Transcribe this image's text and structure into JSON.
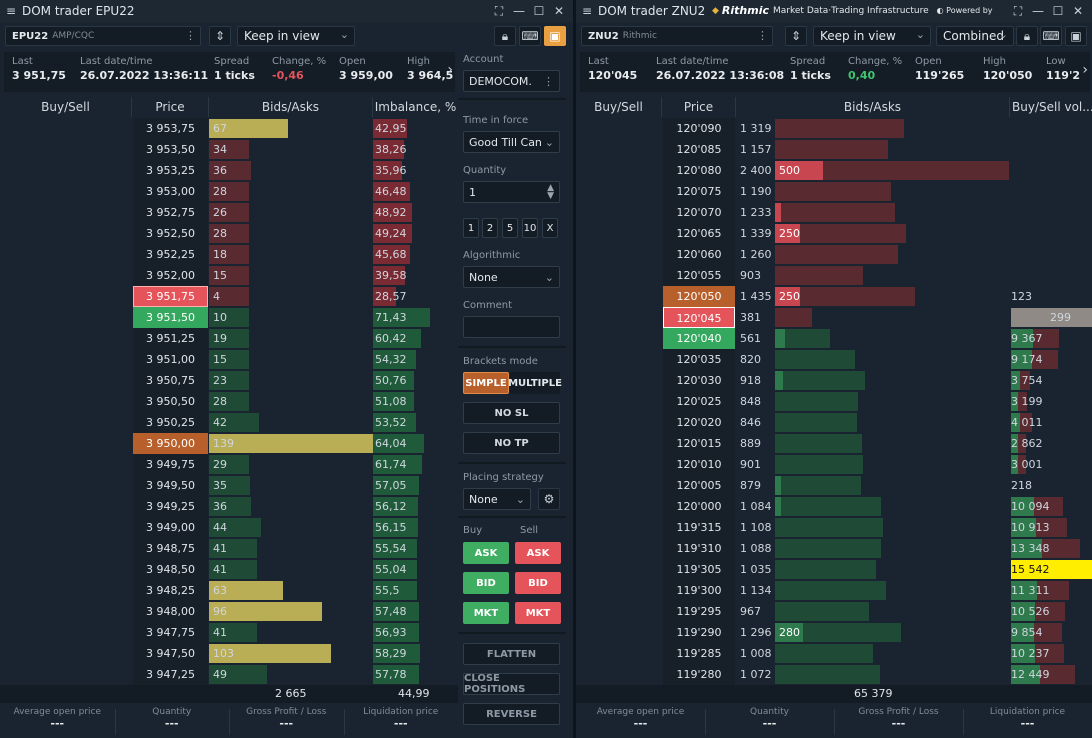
{
  "left": {
    "title": "DOM trader EPU22",
    "symbol": "EPU22",
    "exchange": "AMP/CQC",
    "view_mode": "Keep in view",
    "stats": [
      {
        "label": "Last",
        "value": "3 951,75",
        "tone": "normal"
      },
      {
        "label": "Last date/time",
        "value": "26.07.2022 13:36:11",
        "tone": "normal"
      },
      {
        "label": "Spread",
        "value": "1 ticks",
        "tone": "normal"
      },
      {
        "label": "Change, %",
        "value": "-0,46",
        "tone": "neg"
      },
      {
        "label": "Open",
        "value": "3 959,00",
        "tone": "normal"
      },
      {
        "label": "High",
        "value": "3 964,5",
        "tone": "normal"
      }
    ],
    "columns": [
      "Buy/Sell",
      "Price",
      "Bids/Asks",
      "Imbalance, %"
    ],
    "rows": [
      {
        "price": "3 953,75",
        "size": "67",
        "imb": "42,95",
        "side": "ask",
        "sizeHL": true,
        "sv": 67,
        "iv": 42.95
      },
      {
        "price": "3 953,50",
        "size": "34",
        "imb": "38,26",
        "side": "ask",
        "sizeHL": false,
        "sv": 34,
        "iv": 38.26
      },
      {
        "price": "3 953,25",
        "size": "36",
        "imb": "35,96",
        "side": "ask",
        "sizeHL": false,
        "sv": 36,
        "iv": 35.96
      },
      {
        "price": "3 953,00",
        "size": "28",
        "imb": "46,48",
        "side": "ask",
        "sizeHL": false,
        "sv": 28,
        "iv": 46.48
      },
      {
        "price": "3 952,75",
        "size": "26",
        "imb": "48,92",
        "side": "ask",
        "sizeHL": false,
        "sv": 26,
        "iv": 48.92
      },
      {
        "price": "3 952,50",
        "size": "28",
        "imb": "49,24",
        "side": "ask",
        "sizeHL": false,
        "sv": 28,
        "iv": 49.24
      },
      {
        "price": "3 952,25",
        "size": "18",
        "imb": "45,68",
        "side": "ask",
        "sizeHL": false,
        "sv": 18,
        "iv": 45.68
      },
      {
        "price": "3 952,00",
        "size": "15",
        "imb": "39,58",
        "side": "ask",
        "sizeHL": false,
        "sv": 15,
        "iv": 39.58
      },
      {
        "price": "3 951,75",
        "size": "4",
        "imb": "28,57",
        "side": "ask",
        "sizeHL": false,
        "sv": 4,
        "iv": 28.57,
        "mark": "red"
      },
      {
        "price": "3 951,50",
        "size": "10",
        "imb": "71,43",
        "side": "bid",
        "sizeHL": false,
        "sv": 10,
        "iv": 71.43,
        "mark": "grn"
      },
      {
        "price": "3 951,25",
        "size": "19",
        "imb": "60,42",
        "side": "bid",
        "sizeHL": false,
        "sv": 19,
        "iv": 60.42
      },
      {
        "price": "3 951,00",
        "size": "15",
        "imb": "54,32",
        "side": "bid",
        "sizeHL": false,
        "sv": 15,
        "iv": 54.32
      },
      {
        "price": "3 950,75",
        "size": "23",
        "imb": "50,76",
        "side": "bid",
        "sizeHL": false,
        "sv": 23,
        "iv": 50.76
      },
      {
        "price": "3 950,50",
        "size": "28",
        "imb": "51,08",
        "side": "bid",
        "sizeHL": false,
        "sv": 28,
        "iv": 51.08
      },
      {
        "price": "3 950,25",
        "size": "42",
        "imb": "53,52",
        "side": "bid",
        "sizeHL": false,
        "sv": 42,
        "iv": 53.52
      },
      {
        "price": "3 950,00",
        "size": "139",
        "imb": "64,04",
        "side": "bid",
        "sizeHL": true,
        "sv": 139,
        "iv": 64.04,
        "mark": "org"
      },
      {
        "price": "3 949,75",
        "size": "29",
        "imb": "61,74",
        "side": "bid",
        "sizeHL": false,
        "sv": 29,
        "iv": 61.74
      },
      {
        "price": "3 949,50",
        "size": "35",
        "imb": "57,05",
        "side": "bid",
        "sizeHL": false,
        "sv": 35,
        "iv": 57.05
      },
      {
        "price": "3 949,25",
        "size": "36",
        "imb": "56,12",
        "side": "bid",
        "sizeHL": false,
        "sv": 36,
        "iv": 56.12
      },
      {
        "price": "3 949,00",
        "size": "44",
        "imb": "56,15",
        "side": "bid",
        "sizeHL": false,
        "sv": 44,
        "iv": 56.15
      },
      {
        "price": "3 948,75",
        "size": "41",
        "imb": "55,54",
        "side": "bid",
        "sizeHL": false,
        "sv": 41,
        "iv": 55.54
      },
      {
        "price": "3 948,50",
        "size": "41",
        "imb": "55,04",
        "side": "bid",
        "sizeHL": false,
        "sv": 41,
        "iv": 55.04
      },
      {
        "price": "3 948,25",
        "size": "63",
        "imb": "55,5",
        "side": "bid",
        "sizeHL": true,
        "sv": 63,
        "iv": 55.5
      },
      {
        "price": "3 948,00",
        "size": "96",
        "imb": "57,48",
        "side": "bid",
        "sizeHL": true,
        "sv": 96,
        "iv": 57.48
      },
      {
        "price": "3 947,75",
        "size": "41",
        "imb": "56,93",
        "side": "bid",
        "sizeHL": false,
        "sv": 41,
        "iv": 56.93
      },
      {
        "price": "3 947,50",
        "size": "103",
        "imb": "58,29",
        "side": "bid",
        "sizeHL": true,
        "sv": 103,
        "iv": 58.29
      },
      {
        "price": "3 947,25",
        "size": "49",
        "imb": "57,78",
        "side": "bid",
        "sizeHL": false,
        "sv": 49,
        "iv": 57.78
      }
    ],
    "footer_total": "2 665",
    "footer_imb": "44,99",
    "bottom": [
      {
        "label": "Average open price",
        "value": "---"
      },
      {
        "label": "Quantity",
        "value": "---"
      },
      {
        "label": "Gross Profit / Loss",
        "value": "---"
      },
      {
        "label": "Liquidation price",
        "value": "---"
      }
    ]
  },
  "side": {
    "account_label": "Account",
    "account_value": "DEMOCOM.",
    "tif_label": "Time in force",
    "tif_value": "Good Till Can",
    "qty_label": "Quantity",
    "qty_value": "1",
    "qty_presets": [
      "1",
      "2",
      "5",
      "10",
      "X"
    ],
    "algo_label": "Algorithmic",
    "algo_value": "None",
    "comment_label": "Comment",
    "brackets_label": "Brackets mode",
    "simple": "SIMPLE",
    "multiple": "MULTIPLE",
    "no_sl": "NO SL",
    "no_tp": "NO TP",
    "placing_label": "Placing strategy",
    "placing_value": "None",
    "buy_label": "Buy",
    "sell_label": "Sell",
    "ask": "ASK",
    "bid": "BID",
    "mkt": "MKT",
    "flatten": "FLATTEN",
    "close_positions": "CLOSE POSITIONS",
    "reverse": "REVERSE"
  },
  "right": {
    "title": "DOM trader ZNU2",
    "rithmic_brand": "Rithmic",
    "rithmic_tag": "Market Data·Trading Infrastructure",
    "powered_by": "Powered by",
    "symbol": "ZNU2",
    "exchange": "Rithmic",
    "view_mode": "Keep in view",
    "combined": "Combined",
    "stats": [
      {
        "label": "Last",
        "value": "120'045",
        "tone": "normal"
      },
      {
        "label": "Last date/time",
        "value": "26.07.2022 13:36:08",
        "tone": "normal"
      },
      {
        "label": "Spread",
        "value": "1 ticks",
        "tone": "normal"
      },
      {
        "label": "Change, %",
        "value": "0,40",
        "tone": "pos"
      },
      {
        "label": "Open",
        "value": "119'265",
        "tone": "normal"
      },
      {
        "label": "High",
        "value": "120'050",
        "tone": "normal"
      },
      {
        "label": "Low",
        "value": "119'2",
        "tone": "normal"
      }
    ],
    "columns": [
      "Buy/Sell",
      "Price",
      "Bids/Asks",
      "Buy/Sell vol..."
    ],
    "rows": [
      {
        "price": "120'090",
        "size": "1 319",
        "sv": 1319,
        "side": "ask",
        "hl": "",
        "hlv": 0,
        "vol": "",
        "vv": 0
      },
      {
        "price": "120'085",
        "size": "1 157",
        "sv": 1157,
        "side": "ask",
        "hl": "",
        "hlv": 0,
        "vol": "",
        "vv": 0
      },
      {
        "price": "120'080",
        "size": "2 400",
        "sv": 2400,
        "side": "ask",
        "hl": "500",
        "hlv": 500,
        "vol": "",
        "vv": 0
      },
      {
        "price": "120'075",
        "size": "1 190",
        "sv": 1190,
        "side": "ask",
        "hl": "",
        "hlv": 0,
        "vol": "",
        "vv": 0
      },
      {
        "price": "120'070",
        "size": "1 233",
        "sv": 1233,
        "side": "ask",
        "hl": "",
        "hlv": 40,
        "vol": "",
        "vv": 0
      },
      {
        "price": "120'065",
        "size": "1 339",
        "sv": 1339,
        "side": "ask",
        "hl": "250",
        "hlv": 250,
        "vol": "",
        "vv": 0
      },
      {
        "price": "120'060",
        "size": "1 260",
        "sv": 1260,
        "side": "ask",
        "hl": "",
        "hlv": 0,
        "vol": "",
        "vv": 0
      },
      {
        "price": "120'055",
        "size": "903",
        "sv": 903,
        "side": "ask",
        "hl": "",
        "hlv": 0,
        "vol": "",
        "vv": 0
      },
      {
        "price": "120'050",
        "size": "1 435",
        "sv": 1435,
        "side": "ask",
        "hl": "250",
        "hlv": 250,
        "vol": "123",
        "vv": 123,
        "mark": "org"
      },
      {
        "price": "120'045",
        "size": "381",
        "sv": 381,
        "side": "ask",
        "hl": "",
        "hlv": 0,
        "vol": "299",
        "vv": 299,
        "mark": "redb",
        "volmark": "gray"
      },
      {
        "price": "120'040",
        "size": "561",
        "sv": 561,
        "side": "bid",
        "hl": "",
        "hlv": 90,
        "vol": "9 367",
        "vv": 9367,
        "mark": "grn"
      },
      {
        "price": "120'035",
        "size": "820",
        "sv": 820,
        "side": "bid",
        "hl": "",
        "hlv": 0,
        "vol": "9 174",
        "vv": 9174
      },
      {
        "price": "120'030",
        "size": "918",
        "sv": 918,
        "side": "bid",
        "hl": "",
        "hlv": 60,
        "vol": "3 754",
        "vv": 3754
      },
      {
        "price": "120'025",
        "size": "848",
        "sv": 848,
        "side": "bid",
        "hl": "",
        "hlv": 0,
        "vol": "3 199",
        "vv": 3199
      },
      {
        "price": "120'020",
        "size": "846",
        "sv": 846,
        "side": "bid",
        "hl": "",
        "hlv": 0,
        "vol": "4 011",
        "vv": 4011
      },
      {
        "price": "120'015",
        "size": "889",
        "sv": 889,
        "side": "bid",
        "hl": "",
        "hlv": 0,
        "vol": "2 862",
        "vv": 2862
      },
      {
        "price": "120'010",
        "size": "901",
        "sv": 901,
        "side": "bid",
        "hl": "",
        "hlv": 0,
        "vol": "3 001",
        "vv": 3001
      },
      {
        "price": "120'005",
        "size": "879",
        "sv": 879,
        "side": "bid",
        "hl": "",
        "hlv": 40,
        "vol": "218",
        "vv": 218
      },
      {
        "price": "120'000",
        "size": "1 084",
        "sv": 1084,
        "side": "bid",
        "hl": "",
        "hlv": 40,
        "vol": "10 094",
        "vv": 10094
      },
      {
        "price": "119'315",
        "size": "1 108",
        "sv": 1108,
        "side": "bid",
        "hl": "",
        "hlv": 0,
        "vol": "10 913",
        "vv": 10913
      },
      {
        "price": "119'310",
        "size": "1 088",
        "sv": 1088,
        "side": "bid",
        "hl": "",
        "hlv": 0,
        "vol": "13 348",
        "vv": 13348
      },
      {
        "price": "119'305",
        "size": "1 035",
        "sv": 1035,
        "side": "bid",
        "hl": "",
        "hlv": 0,
        "vol": "15 542",
        "vv": 15542,
        "volmark": "yellow"
      },
      {
        "price": "119'300",
        "size": "1 134",
        "sv": 1134,
        "side": "bid",
        "hl": "",
        "hlv": 0,
        "vol": "11 311",
        "vv": 11311
      },
      {
        "price": "119'295",
        "size": "967",
        "sv": 967,
        "side": "bid",
        "hl": "",
        "hlv": 0,
        "vol": "10 526",
        "vv": 10526
      },
      {
        "price": "119'290",
        "size": "1 296",
        "sv": 1296,
        "side": "bid",
        "hl": "280",
        "hlv": 280,
        "vol": "9 854",
        "vv": 9854
      },
      {
        "price": "119'285",
        "size": "1 008",
        "sv": 1008,
        "side": "bid",
        "hl": "",
        "hlv": 0,
        "vol": "10 237",
        "vv": 10237
      },
      {
        "price": "119'280",
        "size": "1 072",
        "sv": 1072,
        "side": "bid",
        "hl": "",
        "hlv": 0,
        "vol": "12 449",
        "vv": 12449
      }
    ],
    "footer_total": "65 379",
    "bottom": [
      {
        "label": "Average open price",
        "value": "---"
      },
      {
        "label": "Quantity",
        "value": "---"
      },
      {
        "label": "Gross Profit / Loss",
        "value": "---"
      },
      {
        "label": "Liquidation price",
        "value": "---"
      }
    ]
  },
  "colors": {
    "ask_bar": "#5a2a31",
    "ask_hl": "#c8464f",
    "bid_bar": "#1f4a36",
    "bid_hl": "#2f7a4c",
    "size_hl": "#b9ad56",
    "imb_ask": "#7a2a33",
    "imb_bid": "#1f5b3a",
    "yellow": "#ffee00",
    "gray": "#8f8a86"
  }
}
